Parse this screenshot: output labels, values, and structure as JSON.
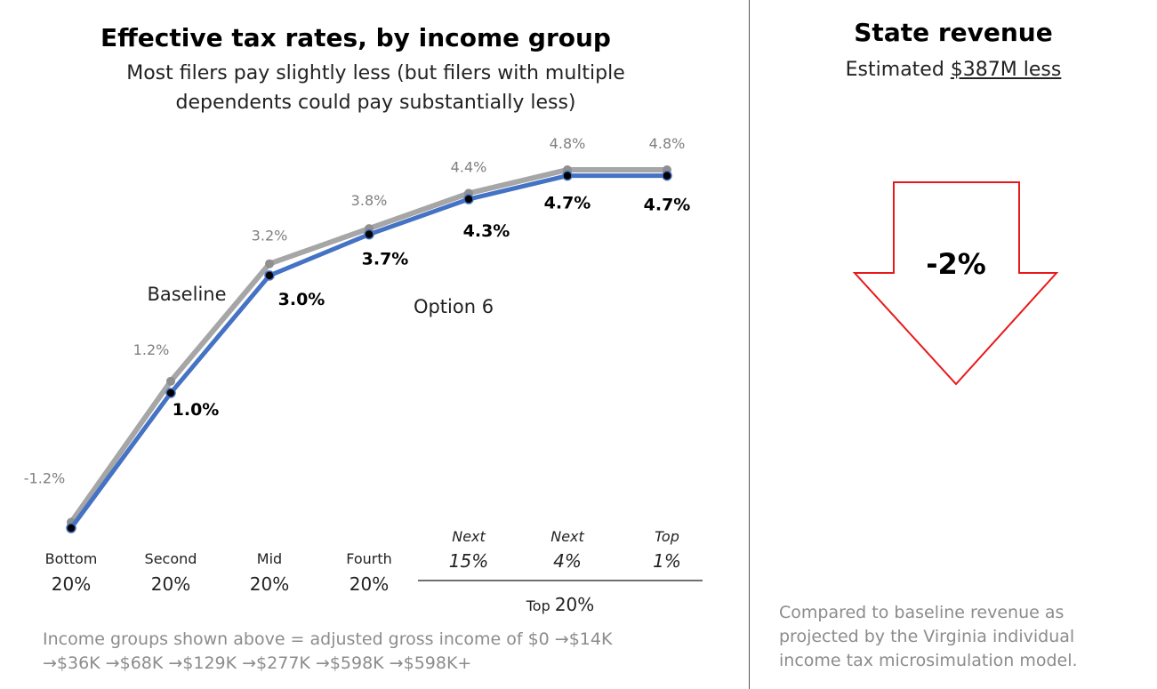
{
  "left": {
    "title": "Effective tax rates, by income group",
    "subtitle_line1": "Most filers pay slightly less (but filers with multiple",
    "subtitle_line2": "dependents could pay substantially less)",
    "footnote_line1": "Income groups shown above = adjusted gross income of $0 →$14K",
    "footnote_line2": "→$36K →$68K →$129K →$277K →$598K →$598K+"
  },
  "right": {
    "title": "State revenue",
    "subtitle_prefix": "Estimated ",
    "subtitle_amount": "$387M  less",
    "arrow_label": "-2%",
    "arrow_color": "#e8191b",
    "footnote_line1": "Compared to baseline revenue as",
    "footnote_line2": "projected by the Virginia individual",
    "footnote_line3": "income tax microsimulation model."
  },
  "chart_data": {
    "type": "line",
    "categories": [
      {
        "top": "Bottom",
        "bottom": "20%",
        "italic": false
      },
      {
        "top": "Second",
        "bottom": "20%",
        "italic": false
      },
      {
        "top": "Mid",
        "bottom": "20%",
        "italic": false
      },
      {
        "top": "Fourth",
        "bottom": "20%",
        "italic": false
      },
      {
        "top": "Next",
        "bottom": "15%",
        "italic": true
      },
      {
        "top": "Next",
        "bottom": "4%",
        "italic": true
      },
      {
        "top": "Top",
        "bottom": "1%",
        "italic": true
      }
    ],
    "group_label_prefix": "Top ",
    "group_label_value": "20%",
    "series": [
      {
        "name": "Baseline",
        "values": [
          -1.2,
          1.2,
          3.2,
          3.8,
          4.4,
          4.8,
          4.8
        ],
        "labels": [
          "-1.2%",
          "1.2%",
          "3.2%",
          "3.8%",
          "4.4%",
          "4.8%",
          "4.8%"
        ],
        "color": "#a6a6a6"
      },
      {
        "name": "Option 6",
        "values": [
          -1.3,
          1.0,
          3.0,
          3.7,
          4.3,
          4.7,
          4.7
        ],
        "labels": [
          "",
          "1.0%",
          "3.0%",
          "3.7%",
          "4.3%",
          "4.7%",
          "4.7%"
        ],
        "color": "#4472c4"
      }
    ],
    "ylim": [
      -1.3,
      4.8
    ],
    "grid": false,
    "legend": "inline labels"
  }
}
